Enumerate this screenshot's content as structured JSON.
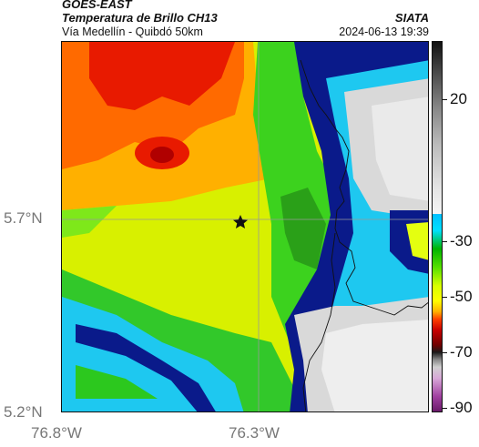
{
  "header": {
    "satellite": "GOES-EAST",
    "product": "Temperatura de Brillo CH13",
    "route": "Vía Medellín - Quibdó 50km",
    "brand": "SIATA",
    "timestamp": "2024-06-13 19:39"
  },
  "axes": {
    "latitude_labels": [
      "5.7°N",
      "5.2°N"
    ],
    "longitude_labels": [
      "76.8°W",
      "76.3°W"
    ]
  },
  "colorbar": {
    "tick_labels": [
      "20",
      "-30",
      "-50",
      "-70",
      "-90"
    ]
  },
  "colors": {
    "ocean_deep": "#0a1a8a",
    "cold_cyan": "#1ec8f0",
    "green": "#2cc81e",
    "yellow_green": "#e4ff10",
    "orange": "#ff8a00",
    "red": "#e81a00",
    "cloud_gray": "#d9d9d9"
  },
  "map": {
    "marker_icon": "star-icon",
    "grid": true
  }
}
